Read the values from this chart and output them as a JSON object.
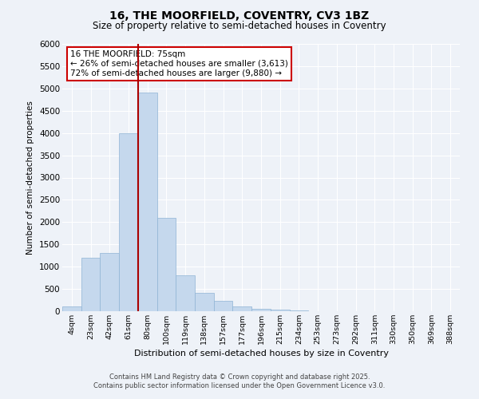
{
  "title1": "16, THE MOORFIELD, COVENTRY, CV3 1BZ",
  "title2": "Size of property relative to semi-detached houses in Coventry",
  "xlabel": "Distribution of semi-detached houses by size in Coventry",
  "ylabel": "Number of semi-detached properties",
  "annotation_title": "16 THE MOORFIELD: 75sqm",
  "annotation_line1": "← 26% of semi-detached houses are smaller (3,613)",
  "annotation_line2": "72% of semi-detached houses are larger (9,880) →",
  "footer1": "Contains HM Land Registry data © Crown copyright and database right 2025.",
  "footer2": "Contains public sector information licensed under the Open Government Licence v3.0.",
  "bar_color": "#c5d8ed",
  "bar_edge_color": "#8fb4d4",
  "vline_color": "#aa0000",
  "categories": [
    "4sqm",
    "23sqm",
    "42sqm",
    "61sqm",
    "80sqm",
    "100sqm",
    "119sqm",
    "138sqm",
    "157sqm",
    "177sqm",
    "196sqm",
    "215sqm",
    "234sqm",
    "253sqm",
    "273sqm",
    "292sqm",
    "311sqm",
    "330sqm",
    "350sqm",
    "369sqm",
    "388sqm"
  ],
  "values": [
    100,
    1200,
    1300,
    4000,
    4900,
    2100,
    800,
    420,
    230,
    100,
    60,
    30,
    15,
    8,
    4,
    3,
    2,
    2,
    1,
    1,
    1
  ],
  "vline_pos": 3.5,
  "ylim": [
    0,
    6000
  ],
  "yticks": [
    0,
    500,
    1000,
    1500,
    2000,
    2500,
    3000,
    3500,
    4000,
    4500,
    5000,
    5500,
    6000
  ],
  "background_color": "#eef2f8",
  "grid_color": "#ffffff"
}
